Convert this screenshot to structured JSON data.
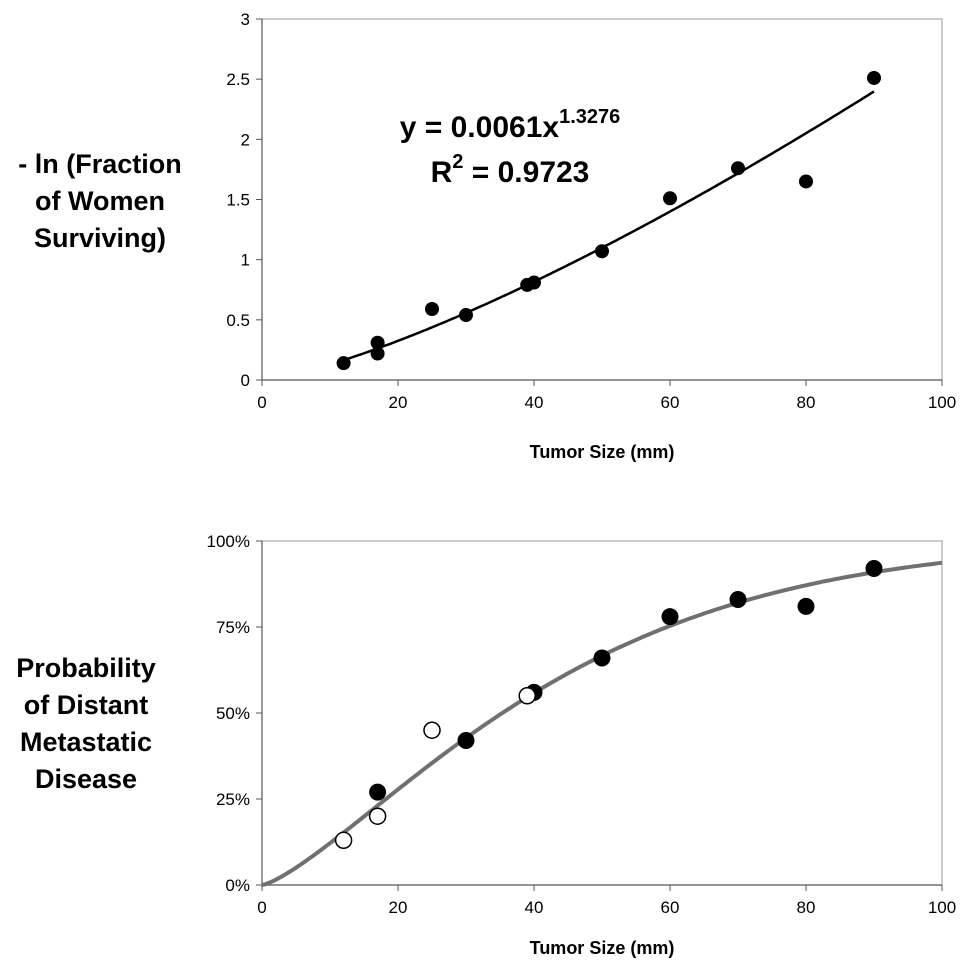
{
  "chart_data": [
    {
      "type": "scatter",
      "xlabel": "Tumor Size (mm)",
      "ylabel_lines": [
        "- ln (Fraction",
        "of Women",
        "Surviving)"
      ],
      "xlim": [
        0,
        100
      ],
      "ylim": [
        0,
        3
      ],
      "x_ticks": [
        "0",
        "20",
        "40",
        "60",
        "80",
        "100"
      ],
      "y_ticks": [
        "0",
        "0.5",
        "1",
        "1.5",
        "2",
        "2.5",
        "3"
      ],
      "grid": false,
      "legend": "none",
      "equation": {
        "prefix": "y = 0.0061x",
        "exponent": "1.3276"
      },
      "r_squared": {
        "prefix": "R",
        "sup": "2",
        "value": " = 0.9723"
      },
      "fit": {
        "kind": "power",
        "a": 0.0061,
        "b": 1.3276,
        "x_range": [
          12,
          90
        ]
      },
      "points": [
        {
          "x": 12,
          "y": 0.14
        },
        {
          "x": 17,
          "y": 0.22
        },
        {
          "x": 17,
          "y": 0.31
        },
        {
          "x": 25,
          "y": 0.59
        },
        {
          "x": 30,
          "y": 0.54
        },
        {
          "x": 39,
          "y": 0.79
        },
        {
          "x": 40,
          "y": 0.81
        },
        {
          "x": 50,
          "y": 1.07
        },
        {
          "x": 60,
          "y": 1.51
        },
        {
          "x": 70,
          "y": 1.76
        },
        {
          "x": 80,
          "y": 1.65
        },
        {
          "x": 90,
          "y": 2.51
        }
      ]
    },
    {
      "type": "scatter",
      "xlabel": "Tumor Size (mm)",
      "ylabel_lines": [
        "Probability",
        "of Distant",
        "Metastatic",
        "Disease"
      ],
      "xlim": [
        0,
        100
      ],
      "ylim": [
        0,
        100
      ],
      "x_ticks": [
        "0",
        "20",
        "40",
        "60",
        "80",
        "100"
      ],
      "y_ticks": [
        "0%",
        "25%",
        "50%",
        "75%",
        "100%"
      ],
      "grid": false,
      "legend": "none",
      "fit": {
        "kind": "survival",
        "a": 0.0061,
        "b": 1.3276,
        "x_range": [
          0,
          100
        ],
        "color": "#707070"
      },
      "filled_points": [
        {
          "x": 17,
          "y": 27
        },
        {
          "x": 30,
          "y": 42
        },
        {
          "x": 40,
          "y": 56
        },
        {
          "x": 50,
          "y": 66
        },
        {
          "x": 60,
          "y": 78
        },
        {
          "x": 70,
          "y": 83
        },
        {
          "x": 80,
          "y": 81
        },
        {
          "x": 90,
          "y": 92
        }
      ],
      "open_points": [
        {
          "x": 12,
          "y": 13
        },
        {
          "x": 17,
          "y": 20
        },
        {
          "x": 25,
          "y": 45
        },
        {
          "x": 39,
          "y": 55
        }
      ]
    }
  ]
}
